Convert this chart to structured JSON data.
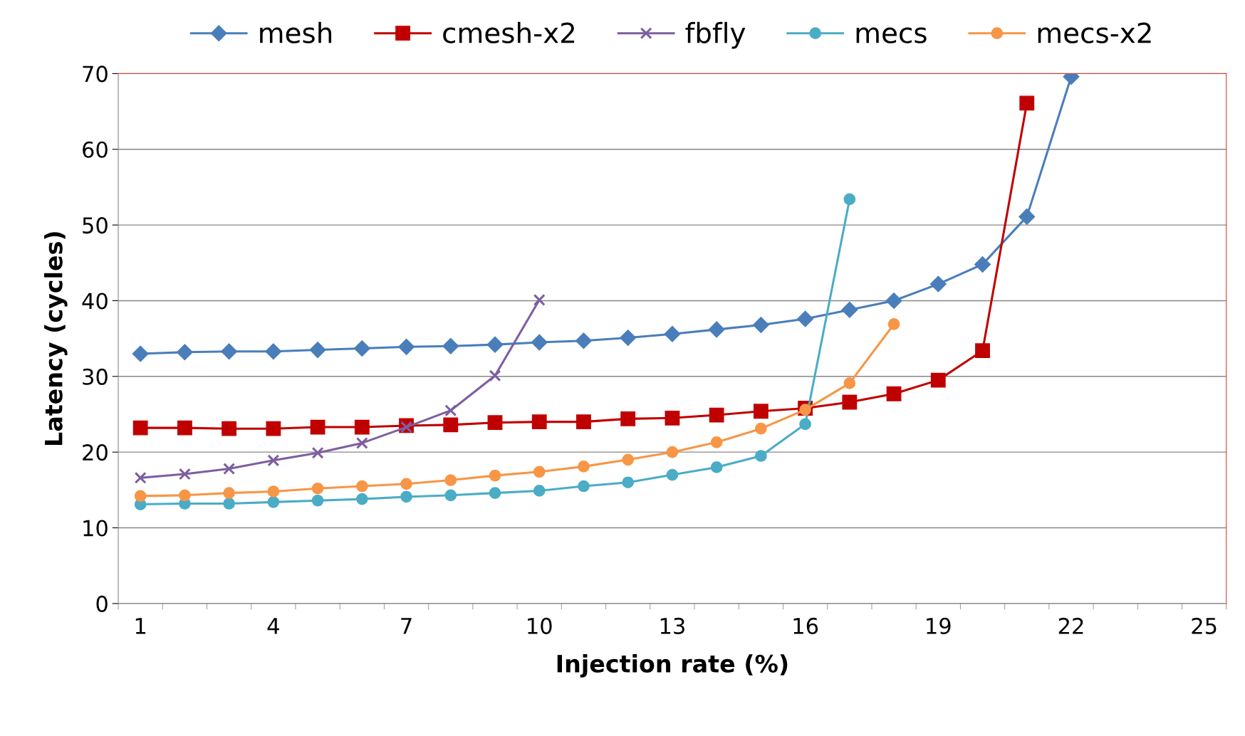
{
  "chart_data": {
    "type": "line",
    "xlabel": "Injection rate (%)",
    "ylabel": "Latency (cycles)",
    "categories": [
      "1",
      null,
      null,
      "4",
      null,
      null,
      "7",
      null,
      null,
      "10",
      null,
      null,
      "13",
      null,
      null,
      "16",
      null,
      null,
      "19",
      null,
      null,
      "22",
      null,
      null,
      "25"
    ],
    "ylim": [
      0,
      70
    ],
    "yticks": [
      0,
      10,
      20,
      30,
      40,
      50,
      60,
      70
    ],
    "grid": "y",
    "legend": "top",
    "series": [
      {
        "name": "mesh",
        "color": "#4a7ebb",
        "marker": "diamond",
        "values": [
          33.0,
          33.2,
          33.3,
          33.3,
          33.5,
          33.7,
          33.9,
          34.0,
          34.2,
          34.5,
          34.7,
          35.1,
          35.6,
          36.2,
          36.8,
          37.6,
          38.8,
          40.0,
          42.2,
          44.8,
          51.1,
          69.6,
          null,
          null,
          null
        ]
      },
      {
        "name": "cmesh-x2",
        "color": "#c00000",
        "marker": "square",
        "values": [
          23.2,
          23.2,
          23.1,
          23.1,
          23.3,
          23.3,
          23.5,
          23.6,
          23.9,
          24.0,
          24.0,
          24.4,
          24.5,
          24.9,
          25.4,
          25.8,
          26.6,
          27.7,
          29.5,
          33.4,
          66.1,
          null,
          null,
          null,
          null
        ]
      },
      {
        "name": "fbfly",
        "color": "#7d5fa0",
        "marker": "cross",
        "values": [
          16.6,
          17.1,
          17.8,
          18.9,
          19.9,
          21.2,
          23.3,
          25.5,
          30.1,
          40.1,
          null,
          null,
          null,
          null,
          null,
          null,
          null,
          null,
          null,
          null,
          null,
          null,
          null,
          null,
          null
        ]
      },
      {
        "name": "mecs",
        "color": "#4bacc6",
        "marker": "circle",
        "values": [
          13.1,
          13.2,
          13.2,
          13.4,
          13.6,
          13.8,
          14.1,
          14.3,
          14.6,
          14.9,
          15.5,
          16.0,
          17.0,
          18.0,
          19.5,
          23.7,
          53.4,
          null,
          null,
          null,
          null,
          null,
          null,
          null,
          null
        ]
      },
      {
        "name": "mecs-x2",
        "color": "#f79646",
        "marker": "circle",
        "values": [
          14.2,
          14.3,
          14.6,
          14.8,
          15.2,
          15.5,
          15.8,
          16.3,
          16.9,
          17.4,
          18.1,
          19.0,
          20.0,
          21.3,
          23.1,
          25.6,
          29.1,
          36.9,
          null,
          null,
          null,
          null,
          null,
          null,
          null
        ]
      }
    ]
  }
}
